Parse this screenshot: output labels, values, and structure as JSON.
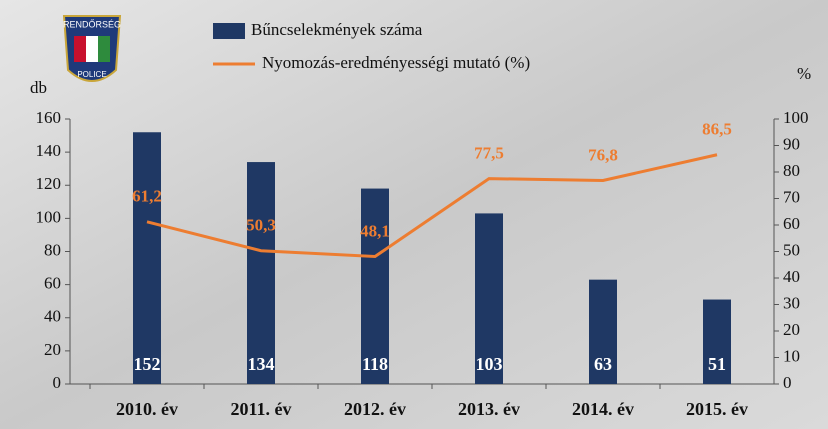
{
  "logo": {
    "top": "RENDŐRSÉG",
    "bottom": "POLICE"
  },
  "chart_data": {
    "type": "bar",
    "categories": [
      "2010. év",
      "2011. év",
      "2012. év",
      "2013. év",
      "2014. év",
      "2015. év"
    ],
    "series": [
      {
        "name": "Bűncselekmények száma",
        "color": "#1f3864",
        "type": "bar",
        "values": [
          152,
          134,
          118,
          103,
          63,
          51
        ]
      },
      {
        "name": "Nyomozás-eredményességi mutató (%)",
        "color": "#ed7d31",
        "type": "line",
        "axis": "y2",
        "values": [
          61.2,
          50.3,
          48.1,
          77.5,
          76.8,
          86.5
        ],
        "value_labels": [
          "61,2",
          "50,3",
          "48,1",
          "77,5",
          "76,8",
          "86,5"
        ]
      }
    ],
    "ylabel": "db",
    "y2label": "%",
    "ylim": [
      0,
      160
    ],
    "yticks": [
      0,
      20,
      40,
      60,
      80,
      100,
      120,
      140,
      160
    ],
    "y2lim": [
      0,
      100
    ],
    "y2ticks": [
      0,
      10,
      20,
      30,
      40,
      50,
      60,
      70,
      80,
      90,
      100
    ]
  }
}
